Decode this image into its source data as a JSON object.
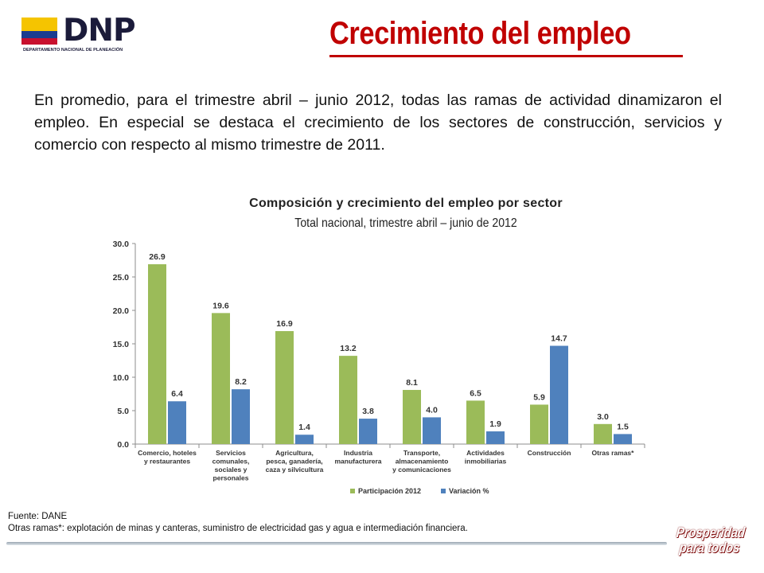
{
  "logo": {
    "text": "DNP",
    "subtitle": "DEPARTAMENTO NACIONAL DE PLANEACIÓN",
    "flag_colors": [
      "#f5c400",
      "#1a3c8f",
      "#c8102e"
    ]
  },
  "page": {
    "title": "Crecimiento del empleo",
    "intro": "En promedio, para el trimestre abril – junio 2012, todas las ramas de actividad dinamizaron el empleo. En especial se destaca el crecimiento de los sectores de construcción, servicios  y comercio con respecto al mismo trimestre de 2011."
  },
  "chart_data": {
    "type": "bar",
    "title": "Composición y crecimiento del empleo por sector",
    "subtitle": "Total nacional, trimestre abril – junio de 2012",
    "categories": [
      [
        "Comercio, hoteles",
        "y restaurantes"
      ],
      [
        "Servicios",
        "comunales,",
        "sociales y",
        "personales"
      ],
      [
        "Agricultura,",
        "pesca, ganadería,",
        "caza y silvicultura"
      ],
      [
        "Industria",
        "manufacturera"
      ],
      [
        "Transporte,",
        "almacenamiento",
        "y comunicaciones"
      ],
      [
        "Actividades",
        "inmobiliarias"
      ],
      [
        "Construcción"
      ],
      [
        "Otras ramas*"
      ]
    ],
    "series": [
      {
        "name": "Participación 2012",
        "color": "#9bbb59",
        "values": [
          26.9,
          19.6,
          16.9,
          13.2,
          8.1,
          6.5,
          5.9,
          3.0
        ]
      },
      {
        "name": "Variación %",
        "color": "#4f81bd",
        "values": [
          6.4,
          8.2,
          1.4,
          3.8,
          4.0,
          1.9,
          14.7,
          1.5
        ]
      }
    ],
    "y_ticks": [
      "0.0",
      "5.0",
      "10.0",
      "15.0",
      "20.0",
      "25.0",
      "30.0"
    ],
    "ylim": [
      0,
      30
    ],
    "grid": false,
    "legend": "bottom"
  },
  "footer": {
    "source": "Fuente: DANE",
    "note": "Otras ramas*:  explotación de minas y canteras, suministro de electricidad gas y agua e intermediación financiera.",
    "badge_line1": "Prosperidad",
    "badge_line2": "para todos"
  }
}
